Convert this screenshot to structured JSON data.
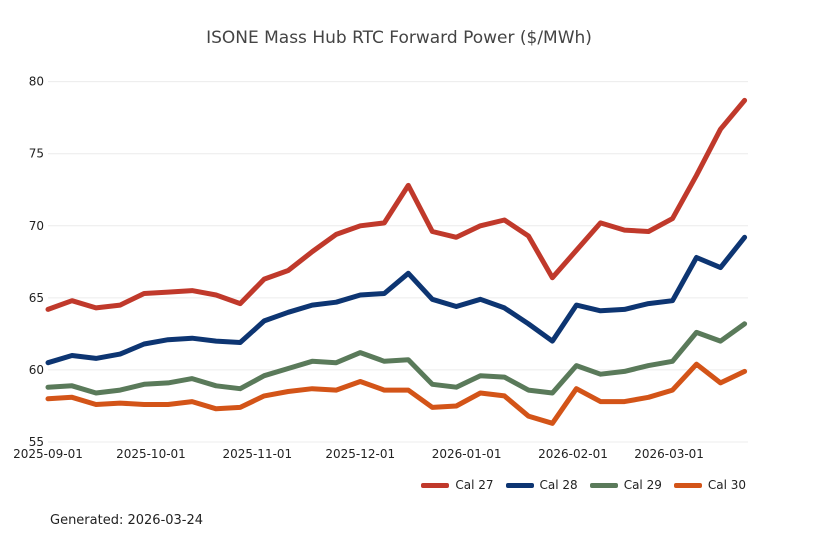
{
  "chart_data": {
    "type": "line",
    "title": "ISONE Mass Hub RTC Forward Power ($/MWh)",
    "xlabel": "",
    "ylabel": "",
    "ylim": [
      55,
      81.5
    ],
    "grid": "horizontal",
    "legend_position": "bottom-right",
    "y_ticks": [
      "55",
      "60",
      "65",
      "70",
      "75",
      "80"
    ],
    "x_ticks": [
      {
        "date": "2025-09-01",
        "label": "2025-09-01"
      },
      {
        "date": "2025-10-01",
        "label": "2025-10-01"
      },
      {
        "date": "2025-11-01",
        "label": "2025-11-01"
      },
      {
        "date": "2025-12-01",
        "label": "2025-12-01"
      },
      {
        "date": "2026-01-01",
        "label": "2026-01-01"
      },
      {
        "date": "2026-02-01",
        "label": "2026-02-01"
      },
      {
        "date": "2026-03-01",
        "label": "2026-03-01"
      }
    ],
    "x": [
      "2025-09-01",
      "2025-09-08",
      "2025-09-15",
      "2025-09-22",
      "2025-09-29",
      "2025-10-06",
      "2025-10-13",
      "2025-10-20",
      "2025-10-27",
      "2025-11-03",
      "2025-11-10",
      "2025-11-17",
      "2025-11-24",
      "2025-12-01",
      "2025-12-08",
      "2025-12-15",
      "2025-12-22",
      "2025-12-29",
      "2026-01-05",
      "2026-01-12",
      "2026-01-19",
      "2026-01-26",
      "2026-02-02",
      "2026-02-09",
      "2026-02-16",
      "2026-02-23",
      "2026-03-02",
      "2026-03-09",
      "2026-03-16",
      "2026-03-23"
    ],
    "series": [
      {
        "name": "Cal 27",
        "color": "#c0392b",
        "values": [
          64.2,
          64.8,
          64.3,
          64.5,
          65.3,
          65.4,
          65.5,
          65.2,
          64.6,
          66.3,
          66.9,
          68.2,
          69.4,
          70.0,
          70.2,
          72.8,
          69.6,
          69.2,
          70.0,
          70.4,
          69.3,
          66.4,
          68.3,
          70.2,
          69.7,
          69.6,
          70.5,
          73.5,
          76.7,
          78.7
        ]
      },
      {
        "name": "Cal 28",
        "color": "#0d3572",
        "values": [
          60.5,
          61.0,
          60.8,
          61.1,
          61.8,
          62.1,
          62.2,
          62.0,
          61.9,
          63.4,
          64.0,
          64.5,
          64.7,
          65.2,
          65.3,
          66.7,
          64.9,
          64.4,
          64.9,
          64.3,
          63.2,
          62.0,
          64.5,
          64.1,
          64.2,
          64.6,
          64.8,
          67.8,
          67.1,
          69.2
        ]
      },
      {
        "name": "Cal 29",
        "color": "#5a7a5a",
        "values": [
          58.8,
          58.9,
          58.4,
          58.6,
          59.0,
          59.1,
          59.4,
          58.9,
          58.7,
          59.6,
          60.1,
          60.6,
          60.5,
          61.2,
          60.6,
          60.7,
          59.0,
          58.8,
          59.6,
          59.5,
          58.6,
          58.4,
          60.3,
          59.7,
          59.9,
          60.3,
          60.6,
          62.6,
          62.0,
          63.2
        ]
      },
      {
        "name": "Cal 30",
        "color": "#d35418",
        "values": [
          58.0,
          58.1,
          57.6,
          57.7,
          57.6,
          57.6,
          57.8,
          57.3,
          57.4,
          58.2,
          58.5,
          58.7,
          58.6,
          59.2,
          58.6,
          58.6,
          57.4,
          57.5,
          58.4,
          58.2,
          56.8,
          56.3,
          58.7,
          57.8,
          57.8,
          58.1,
          58.6,
          60.4,
          59.1,
          59.9
        ]
      }
    ]
  },
  "footer": {
    "generated": "Generated: 2026-03-24"
  }
}
